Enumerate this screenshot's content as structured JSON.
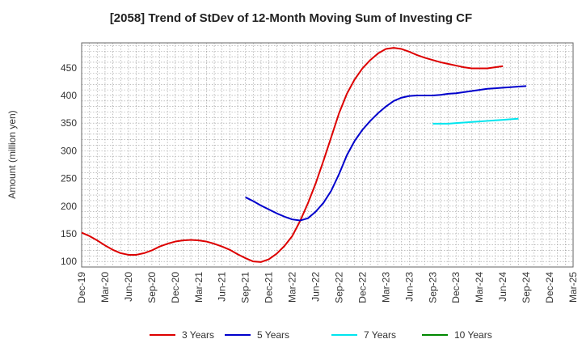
{
  "chart_data": {
    "type": "line",
    "title": "[2058]  Trend of StDev of 12-Month Moving Sum of Investing CF",
    "xlabel": "",
    "ylabel": "Amount (million yen)",
    "ylim": [
      90,
      495
    ],
    "yticks": [
      100,
      150,
      200,
      250,
      300,
      350,
      400,
      450
    ],
    "x_tick_labels": [
      "Dec-19",
      "Mar-20",
      "Jun-20",
      "Sep-20",
      "Dec-20",
      "Mar-21",
      "Jun-21",
      "Sep-21",
      "Dec-21",
      "Mar-22",
      "Jun-22",
      "Sep-22",
      "Dec-22",
      "Mar-23",
      "Jun-23",
      "Sep-23",
      "Dec-23",
      "Mar-24",
      "Jun-24",
      "Sep-24",
      "Dec-24",
      "Mar-25"
    ],
    "grid": true,
    "legend_position": "bottom",
    "series": [
      {
        "name": "3 Years",
        "color": "#dd0000",
        "start_index": 0,
        "values": [
          152,
          146,
          138,
          129,
          121,
          115,
          112,
          112,
          115,
          120,
          127,
          132,
          136,
          138,
          139,
          138,
          136,
          132,
          127,
          121,
          113,
          106,
          100,
          99,
          104,
          114,
          128,
          146,
          173,
          205,
          241,
          282,
          325,
          368,
          403,
          429,
          449,
          464,
          476,
          484,
          486,
          484,
          479,
          473,
          468,
          464,
          460,
          457,
          454,
          451,
          449,
          449,
          449,
          451,
          453
        ]
      },
      {
        "name": "5 Years",
        "color": "#0000cc",
        "start_index": 21,
        "values": [
          216,
          209,
          201,
          194,
          187,
          181,
          176,
          174,
          178,
          190,
          206,
          228,
          258,
          292,
          318,
          338,
          354,
          368,
          380,
          390,
          396,
          399,
          400,
          400,
          400,
          401,
          403,
          404,
          406,
          408,
          410,
          412,
          413,
          414,
          415,
          416,
          417
        ]
      },
      {
        "name": "7 Years",
        "color": "#00e5ee",
        "start_index": 45,
        "values": [
          349,
          349,
          349,
          350,
          351,
          352,
          353,
          354,
          355,
          356,
          357,
          358
        ]
      },
      {
        "name": "10 Years",
        "color": "#008800",
        "start_index": 0,
        "values": []
      }
    ]
  }
}
